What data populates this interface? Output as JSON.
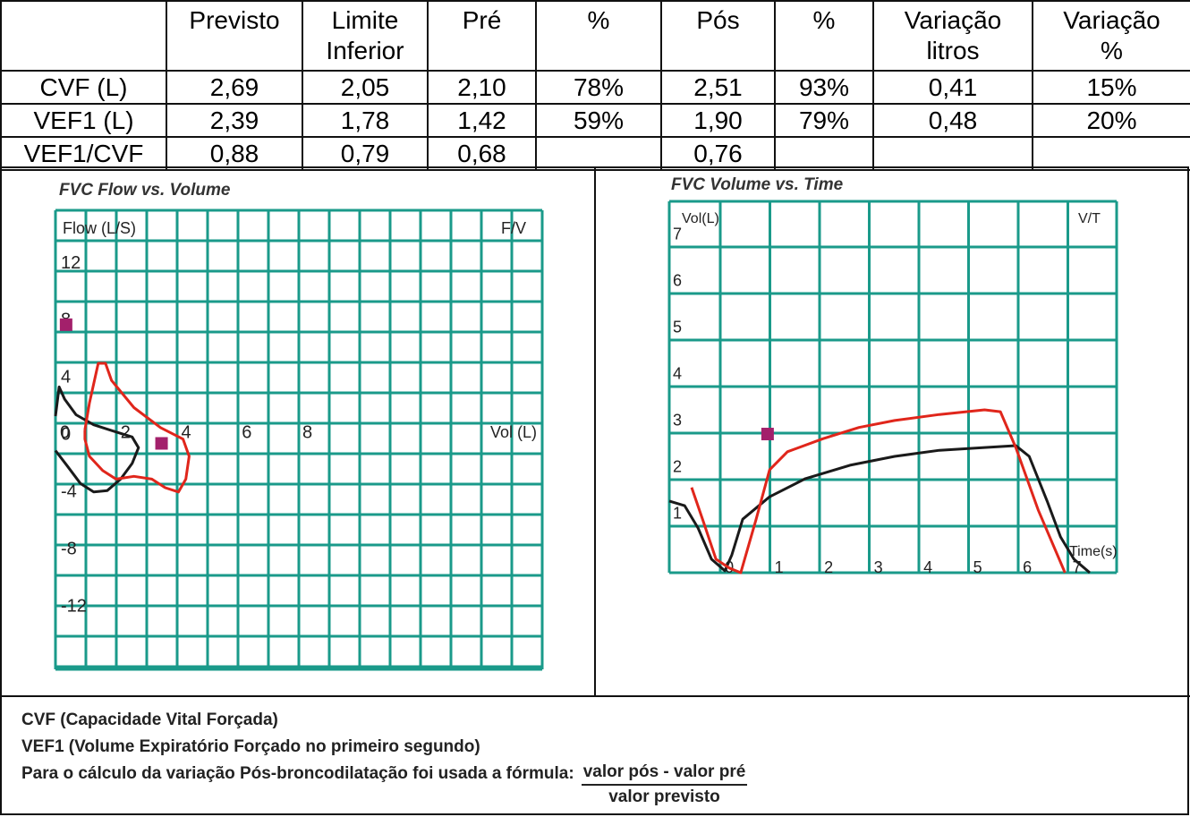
{
  "table": {
    "headers": [
      "Previsto",
      "Limite\nInferior",
      "Pré",
      "%",
      "Pós",
      "%",
      "Variação\nlitros",
      "Variação\n%"
    ],
    "rows": [
      [
        "CVF  (L)",
        "2,69",
        "2,05",
        "2,10",
        "78%",
        "2,51",
        "93%",
        "0,41",
        "15%"
      ],
      [
        "VEF1 (L)",
        "2,39",
        "1,78",
        "1,42",
        "59%",
        "1,90",
        "79%",
        "0,48",
        "20%"
      ],
      [
        "VEF1/CVF",
        "0,88",
        "0,79",
        "0,68",
        null,
        "0,76",
        null,
        null,
        null
      ]
    ]
  },
  "charts": [
    {
      "type": "line",
      "title": "FVC Flow vs. Volume",
      "ylabel": "Flow (L/S)",
      "corner_label": "F/V",
      "xlabel": "Vol (L)",
      "xlim": [
        -0.06,
        16
      ],
      "ylim": [
        -16.5,
        15.6
      ],
      "xticks": [
        0,
        2,
        4,
        6,
        8
      ],
      "yticks": [
        12,
        8,
        4,
        0,
        -4,
        -8,
        -12
      ],
      "series": [
        {
          "color": "#1a1a1a",
          "x": [
            -0.06,
            0.06,
            0.24,
            0.62,
            1.2,
            1.94,
            2.47,
            2.68,
            2.47,
            2.09,
            1.65,
            1.2,
            0.76,
            0.32,
            -0.06
          ],
          "y": [
            1.2,
            3.25,
            2.4,
            1.3,
            0.6,
            0.1,
            -0.25,
            -1.0,
            -2.1,
            -3.2,
            -4.0,
            -4.1,
            -3.5,
            -2.25,
            -1.2
          ]
        },
        {
          "color": "#e0261b",
          "x": [
            0.91,
            1.06,
            1.35,
            1.59,
            1.79,
            2.53,
            3.41,
            4.15,
            4.35,
            4.24,
            4.0,
            3.56,
            3.12,
            2.53,
            1.94,
            1.5,
            1.06,
            0.91,
            0.91
          ],
          "y": [
            0.25,
            2.1,
            4.9,
            4.9,
            3.7,
            1.8,
            0.4,
            -0.4,
            -1.6,
            -3.2,
            -4.1,
            -3.8,
            -3.2,
            -3.0,
            -3.2,
            -2.6,
            -1.6,
            -0.4,
            0.25
          ]
        }
      ],
      "markers": {
        "color": "#a3206b",
        "x": [
          0.29,
          3.44
        ],
        "y": [
          7.6,
          -0.7
        ]
      }
    },
    {
      "type": "line",
      "title": "FVC Volume vs. Time",
      "ylabel": "Vol(L)",
      "corner_label": "V/T",
      "xlabel": "Time(s)",
      "xlim": [
        -1.03,
        7.98
      ],
      "ylim": [
        0,
        7.98
      ],
      "xticks": [
        0,
        1,
        2,
        3,
        4,
        5,
        6,
        7
      ],
      "yticks": [
        1,
        2,
        3,
        4,
        5,
        6,
        7
      ],
      "series": [
        {
          "color": "#1a1a1a",
          "x": [
            -1.03,
            -0.72,
            -0.45,
            -0.18,
            0.09,
            0.23,
            0.45,
            0.99,
            1.71,
            2.61,
            3.51,
            4.41,
            5.32,
            5.95,
            6.22,
            6.58,
            6.85,
            7.12,
            7.44
          ],
          "y": [
            1.54,
            1.44,
            0.96,
            0.29,
            0.04,
            0.38,
            1.15,
            1.63,
            2.02,
            2.31,
            2.5,
            2.63,
            2.69,
            2.73,
            2.5,
            1.54,
            0.77,
            0.29,
            0.0
          ]
        },
        {
          "color": "#e0261b",
          "x": [
            -0.58,
            -0.36,
            -0.09,
            0.18,
            0.41,
            0.72,
            0.99,
            1.35,
            2.07,
            2.79,
            3.51,
            4.41,
            5.32,
            5.64,
            5.95,
            6.4,
            6.94
          ],
          "y": [
            1.83,
            1.15,
            0.29,
            0.1,
            0.0,
            1.15,
            2.21,
            2.6,
            2.88,
            3.12,
            3.27,
            3.4,
            3.5,
            3.46,
            2.69,
            1.35,
            0.0
          ]
        }
      ],
      "markers": {
        "color": "#a3206b",
        "x": [
          0.95
        ],
        "y": [
          2.98
        ]
      }
    }
  ],
  "notes": {
    "lines": [
      "CVF (Capacidade Vital Forçada)",
      "VEF1 (Volume Expiratório Forçado no primeiro segundo)",
      "Para o cálculo da variação Pós-broncodilatação foi usada a fórmula:"
    ],
    "formula": {
      "numerator": "valor pós - valor pré",
      "denominator": "valor previsto"
    }
  }
}
